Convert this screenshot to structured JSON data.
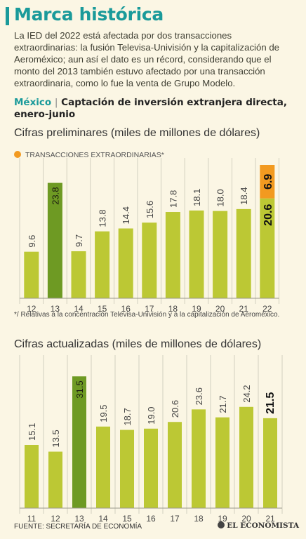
{
  "title": "Marca histórica",
  "intro": "La IED del 2022 está afectada por dos transacciones extraordinarias: la fusión Televisa-Univisión y la capitalización de Aeroméxico; aun así el dato es un récord, considerando que el monto del 2013 también estuvo afectado por una transacción extraordinaria, como lo fue la venta de Grupo Modelo.",
  "heading": {
    "country": "México",
    "separator": "|",
    "text": "Captación de inversión extranjera directa, enero-junio"
  },
  "colors": {
    "accent": "#1a9a9a",
    "bar_light": "#bcc834",
    "bar_dark": "#6e9a23",
    "extraordinary": "#f29a20"
  },
  "footnote": "*/ Relativas a la concentración Televisa-Univisión y a la capitalización de Aeroméxico.",
  "source": "FUENTE: SECRETARÍA DE ECONOMÍA",
  "logo_text": "EL ECONOMISTA",
  "chart_data": [
    {
      "type": "bar",
      "title": "Cifras preliminares (miles de millones de dólares)",
      "legend": [
        "TRANSACCIONES EXTRAORDINARIAS*"
      ],
      "categories": [
        "12",
        "13",
        "14",
        "15",
        "16",
        "17",
        "18",
        "19",
        "20",
        "21",
        "22"
      ],
      "labels": [
        "9.6",
        "23.8",
        "9.7",
        "13.8",
        "14.4",
        "15.6",
        "17.8",
        "18.1",
        "18.0",
        "18.4",
        "20.6"
      ],
      "series": [
        {
          "values": [
            9.6,
            23.8,
            9.7,
            13.8,
            14.4,
            15.6,
            17.8,
            18.1,
            18.0,
            18.4,
            20.6
          ]
        },
        {
          "name": "TRANSACCIONES EXTRAORDINARIAS*",
          "values": [
            0,
            0,
            0,
            0,
            0,
            0,
            0,
            0,
            0,
            0,
            6.9
          ],
          "labels": [
            "",
            "",
            "",
            "",
            "",
            "",
            "",
            "",
            "",
            "",
            "6.9"
          ]
        }
      ],
      "stacked": true,
      "highlight": [
        "13"
      ],
      "ylim": [
        0,
        27.5
      ]
    },
    {
      "type": "bar",
      "title": "Cifras actualizadas (miles de millones de dólares)",
      "categories": [
        "11",
        "12",
        "13",
        "14",
        "15",
        "16",
        "17",
        "18",
        "19",
        "20",
        "21"
      ],
      "labels": [
        "15.1",
        "13.5",
        "31.5",
        "19.5",
        "18.7",
        "19.0",
        "20.6",
        "23.6",
        "21.7",
        "24.2",
        "21.5"
      ],
      "values": [
        15.1,
        13.5,
        31.5,
        19.5,
        18.7,
        19.0,
        20.6,
        23.6,
        21.7,
        24.2,
        21.5
      ],
      "highlight": [
        "13"
      ],
      "emphasis": [
        "21"
      ],
      "ylim": [
        0,
        34.9
      ]
    }
  ]
}
